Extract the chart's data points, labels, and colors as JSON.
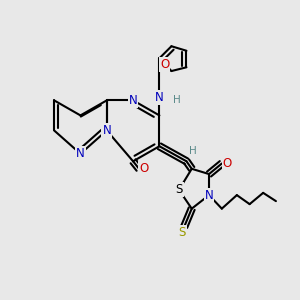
{
  "bg_color": "#e8e8e8",
  "bond_color": "#000000",
  "bond_width": 1.5,
  "atom_colors": {
    "N": "#0000bb",
    "O": "#cc0000",
    "S_thioxo": "#999900",
    "S_ring": "#000000",
    "H": "#5a8a8a"
  }
}
